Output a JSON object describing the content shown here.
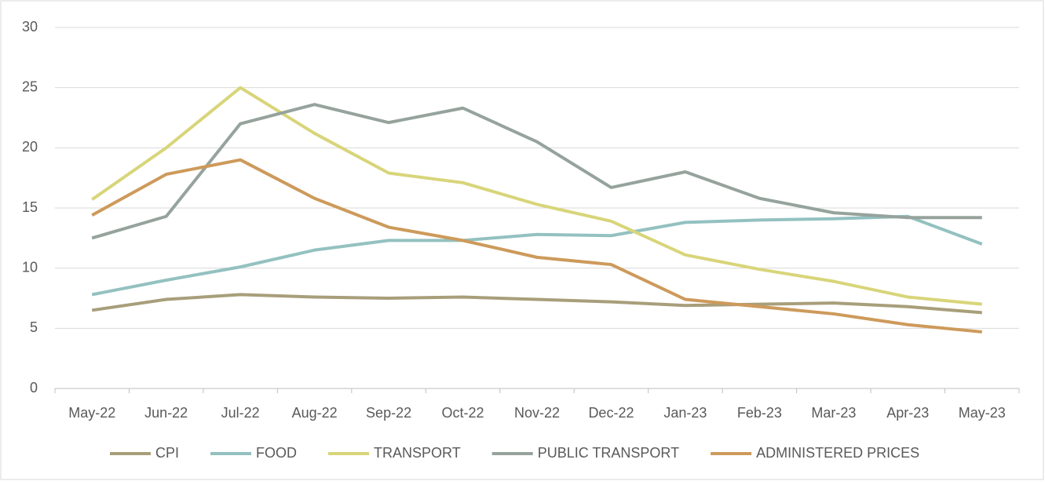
{
  "chart_data": {
    "type": "line",
    "categories": [
      "May-22",
      "Jun-22",
      "Jul-22",
      "Aug-22",
      "Sep-22",
      "Oct-22",
      "Nov-22",
      "Dec-22",
      "Jan-23",
      "Feb-23",
      "Mar-23",
      "Apr-23",
      "May-23"
    ],
    "series": [
      {
        "name": "CPI",
        "color": "#a89e7a",
        "values": [
          6.5,
          7.4,
          7.8,
          7.6,
          7.5,
          7.6,
          7.4,
          7.2,
          6.9,
          7.0,
          7.1,
          6.8,
          6.3
        ]
      },
      {
        "name": "FOOD",
        "color": "#93c1c0",
        "values": [
          7.8,
          9.0,
          10.1,
          11.5,
          12.3,
          12.3,
          12.8,
          12.7,
          13.8,
          14.0,
          14.1,
          14.3,
          12.0
        ]
      },
      {
        "name": "TRANSPORT",
        "color": "#d8d57a",
        "values": [
          15.7,
          20.0,
          25.0,
          21.2,
          17.9,
          17.1,
          15.3,
          13.9,
          11.1,
          9.9,
          8.9,
          7.6,
          7.0
        ]
      },
      {
        "name": "PUBLIC TRANSPORT",
        "color": "#95a39c",
        "values": [
          12.5,
          14.3,
          22.0,
          23.6,
          22.1,
          23.3,
          20.5,
          16.7,
          18.0,
          15.8,
          14.6,
          14.2,
          14.2
        ]
      },
      {
        "name": "ADMINISTERED PRICES",
        "color": "#cd9a5b",
        "values": [
          14.4,
          17.8,
          19.0,
          15.8,
          13.4,
          12.3,
          10.9,
          10.3,
          7.4,
          6.8,
          6.2,
          5.3,
          4.7
        ]
      }
    ],
    "ylim": [
      0,
      30
    ],
    "yticks": [
      0,
      5,
      10,
      15,
      20,
      25,
      30
    ],
    "grid": true,
    "legend": "bottom"
  }
}
